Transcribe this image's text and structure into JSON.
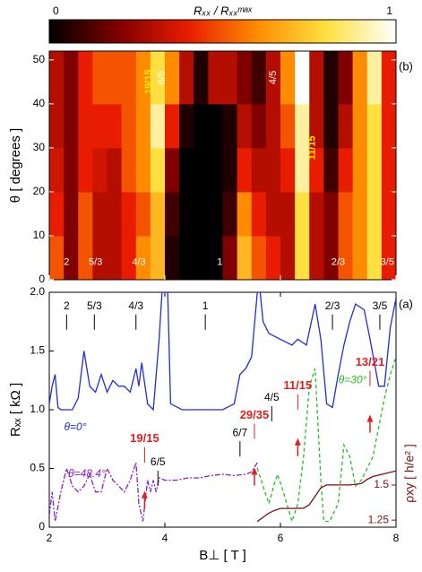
{
  "chart_data": [
    {
      "type": "heatmap",
      "colorbar": {
        "label": "Rₓₓ / Rₓₓᵐᵃˣ",
        "ticks": [
          0,
          1
        ]
      },
      "colormap": [
        "#000000",
        "#800000",
        "#e81c00",
        "#ff8c00",
        "#ffe040",
        "#ffffff"
      ],
      "ylabel": "θ [ degrees ]",
      "panel": "(b)",
      "xlim": [
        2,
        8
      ],
      "ylim": [
        0,
        52
      ],
      "xticks": [
        2,
        4,
        6,
        8
      ],
      "yticks": [
        0,
        10,
        20,
        30,
        40,
        50
      ],
      "x_edges": [
        2,
        2.25,
        2.5,
        2.75,
        3,
        3.25,
        3.5,
        3.75,
        4,
        4.25,
        4.5,
        4.75,
        5,
        5.25,
        5.5,
        5.75,
        6,
        6.25,
        6.5,
        6.75,
        7,
        7.25,
        7.5,
        7.75,
        8
      ],
      "y_edges": [
        0,
        10,
        20,
        30,
        40,
        52
      ],
      "z": [
        [
          0.5,
          0.2,
          0.5,
          0.3,
          0.3,
          0.4,
          0.6,
          0.7,
          0.05,
          0,
          0,
          0,
          0.2,
          0.7,
          0.5,
          0.4,
          0.3,
          0.8,
          0.3,
          0.2,
          0.5,
          0.6,
          0.8,
          0.4
        ],
        [
          0.4,
          0.2,
          0.5,
          0.3,
          0.3,
          0.4,
          0.5,
          0.7,
          0.1,
          0,
          0,
          0,
          0.1,
          0.6,
          0.4,
          0.3,
          0.3,
          0.8,
          0.3,
          0.2,
          0.5,
          0.6,
          0.8,
          0.4
        ],
        [
          0.35,
          0.2,
          0.4,
          0.35,
          0.3,
          0.5,
          0.6,
          0.8,
          0.2,
          0,
          0,
          0,
          0.05,
          0.4,
          0.3,
          0.3,
          0.4,
          0.9,
          0.4,
          0.1,
          0.4,
          0.6,
          0.8,
          0.4
        ],
        [
          0.3,
          0.2,
          0.4,
          0.4,
          0.4,
          0.5,
          0.6,
          0.9,
          0.4,
          0.05,
          0,
          0,
          0.05,
          0.3,
          0.2,
          0.3,
          0.5,
          0.9,
          0.3,
          0.05,
          0.3,
          0.6,
          0.8,
          0.4
        ],
        [
          0.3,
          0.2,
          0.4,
          0.5,
          0.5,
          0.5,
          0.6,
          0.8,
          0.6,
          0.3,
          0.05,
          0.3,
          0.3,
          0.2,
          0.1,
          0.3,
          0.6,
          1.0,
          0.3,
          0.05,
          0.2,
          0.6,
          0.9,
          0.4
        ]
      ],
      "annotations": [
        {
          "text": "2",
          "x": 2.3,
          "y": 4
        },
        {
          "text": "5/3",
          "x": 2.8,
          "y": 4
        },
        {
          "text": "4/3",
          "x": 3.55,
          "y": 4
        },
        {
          "text": "1",
          "x": 4.95,
          "y": 4
        },
        {
          "text": "2/3",
          "x": 7.0,
          "y": 4
        },
        {
          "text": "3/5",
          "x": 7.85,
          "y": 4
        },
        {
          "text": "19/15",
          "x": 3.72,
          "y": 45,
          "color": "#ffee00",
          "rotate": true
        },
        {
          "text": "6/5",
          "x": 3.95,
          "y": 46,
          "rotate": true
        },
        {
          "text": "4/5",
          "x": 5.88,
          "y": 46,
          "rotate": true
        },
        {
          "text": "11/15",
          "x": 6.55,
          "y": 30,
          "color": "#ffee00",
          "rotate": true
        }
      ]
    },
    {
      "type": "line",
      "xlabel": "B⊥ [ T ]",
      "ylabel": "Rₓₓ [ kΩ ]",
      "y2label": "ρxy [ h/e² ]",
      "panel": "(a)",
      "xlim": [
        2,
        8
      ],
      "ylim": [
        0,
        2.0
      ],
      "y2lim": [
        1.2,
        2.87
      ],
      "xticks": [
        2,
        4,
        6,
        8
      ],
      "yticks": [
        0,
        0.5,
        {
          "value": 1.0,
          "label": "1.0"
        },
        1.5,
        {
          "value": 2.0,
          "label": "2.0"
        }
      ],
      "y2ticks": [
        1.25,
        1.5
      ],
      "series": [
        {
          "name": "θ=0°",
          "color": "#1f2fd0",
          "dash": "",
          "label_x": 2.45,
          "label_y": 0.85,
          "x": [
            2.0,
            2.05,
            2.1,
            2.15,
            2.2,
            2.4,
            2.5,
            2.6,
            2.7,
            2.8,
            2.9,
            3.0,
            3.1,
            3.2,
            3.3,
            3.4,
            3.5,
            3.55,
            3.6,
            3.7,
            3.8,
            3.9,
            3.95,
            4.05,
            4.1,
            4.3,
            4.6,
            5.0,
            5.2,
            5.3,
            5.4,
            5.5,
            5.6,
            5.65,
            5.7,
            5.8,
            6.0,
            6.2,
            6.3,
            6.45,
            6.6,
            6.7,
            6.8,
            6.9,
            7.0,
            7.1,
            7.2,
            7.3,
            7.45,
            7.55,
            7.7,
            7.8,
            7.9,
            8.0
          ],
          "values": [
            1.05,
            1.2,
            1.3,
            1.02,
            1.0,
            1.0,
            1.1,
            1.5,
            1.2,
            1.15,
            1.3,
            1.15,
            1.25,
            1.2,
            1.2,
            1.15,
            1.35,
            1.2,
            1.4,
            1.05,
            1.0,
            1.6,
            2.0,
            2.0,
            1.05,
            1.0,
            1.0,
            1.0,
            1.05,
            1.3,
            1.35,
            1.45,
            2.0,
            2.0,
            1.75,
            1.65,
            1.6,
            1.55,
            1.6,
            1.55,
            1.9,
            1.6,
            1.05,
            1.02,
            1.3,
            1.55,
            1.75,
            1.9,
            1.85,
            1.6,
            1.2,
            1.2,
            1.7,
            1.95
          ]
        },
        {
          "name": "θ=30°",
          "color": "#20c020",
          "dash": "4,3",
          "label_x": 7.25,
          "label_y": 1.25,
          "x": [
            5.55,
            5.6,
            5.7,
            5.8,
            5.9,
            5.95,
            6.05,
            6.2,
            6.3,
            6.4,
            6.5,
            6.6,
            6.7,
            6.75,
            6.85,
            7.0,
            7.1,
            7.2,
            7.3,
            7.4,
            7.5,
            7.6,
            7.7,
            7.8,
            7.9,
            8.0
          ],
          "values": [
            0.45,
            0.5,
            0.35,
            0.2,
            0.38,
            0.45,
            0.3,
            0.05,
            0.2,
            0.6,
            1.2,
            1.35,
            0.4,
            0.05,
            0.05,
            0.2,
            0.7,
            0.6,
            0.35,
            0.4,
            0.5,
            0.6,
            0.85,
            1.1,
            1.3,
            1.45
          ]
        },
        {
          "name": "θ=48.4°",
          "color": "#8a20c8",
          "dash": "6,2,2,2",
          "label_x": 2.65,
          "label_y": 0.45,
          "x": [
            2.0,
            2.05,
            2.1,
            2.2,
            2.3,
            2.4,
            2.5,
            2.6,
            2.7,
            2.8,
            2.9,
            3.0,
            3.1,
            3.2,
            3.3,
            3.4,
            3.5,
            3.55,
            3.62,
            3.7,
            3.75,
            3.8,
            3.85,
            3.9,
            4.0,
            4.2,
            4.4,
            4.6,
            4.8,
            5.0,
            5.2,
            5.4,
            5.5,
            5.6
          ],
          "values": [
            0.1,
            0.3,
            0.05,
            0.3,
            0.5,
            0.35,
            0.3,
            0.35,
            0.45,
            0.3,
            0.3,
            0.5,
            0.4,
            0.35,
            0.3,
            0.4,
            0.55,
            0.2,
            0.05,
            0.4,
            0.3,
            0.4,
            0.3,
            0.42,
            0.4,
            0.4,
            0.42,
            0.42,
            0.44,
            0.45,
            0.44,
            0.45,
            0.47,
            0.55
          ]
        },
        {
          "name": "ρxy",
          "color": "#7a1010",
          "dash": "",
          "axis": "y2",
          "x": [
            5.6,
            5.7,
            5.8,
            5.9,
            6.0,
            6.2,
            6.4,
            6.5,
            6.6,
            6.7,
            6.8,
            7.0,
            7.2,
            7.4,
            7.5,
            7.6,
            7.8,
            8.0
          ],
          "values": [
            1.24,
            1.27,
            1.3,
            1.32,
            1.333,
            1.333,
            1.335,
            1.36,
            1.42,
            1.48,
            1.5,
            1.5,
            1.5,
            1.51,
            1.54,
            1.56,
            1.58,
            1.6
          ]
        }
      ],
      "annotations": [
        {
          "text": "2",
          "x": 2.3,
          "y": 1.88
        },
        {
          "text": "5/3",
          "x": 2.78,
          "y": 1.88
        },
        {
          "text": "4/3",
          "x": 3.5,
          "y": 1.88
        },
        {
          "text": "1",
          "x": 4.7,
          "y": 1.88
        },
        {
          "text": "2/3",
          "x": 6.9,
          "y": 1.88
        },
        {
          "text": "3/5",
          "x": 7.72,
          "y": 1.88
        },
        {
          "text": "6/5",
          "x": 3.88,
          "y": 0.55
        },
        {
          "text": "6/7",
          "x": 5.3,
          "y": 0.8
        },
        {
          "text": "4/5",
          "x": 5.85,
          "y": 1.1
        },
        {
          "text": "19/15",
          "x": 3.65,
          "y": 0.75,
          "color": "#e02020"
        },
        {
          "text": "29/35",
          "x": 5.55,
          "y": 0.95,
          "color": "#e02020"
        },
        {
          "text": "11/15",
          "x": 6.3,
          "y": 1.2,
          "color": "#e02020"
        },
        {
          "text": "13/21",
          "x": 7.55,
          "y": 1.4,
          "color": "#e02020"
        }
      ]
    }
  ]
}
